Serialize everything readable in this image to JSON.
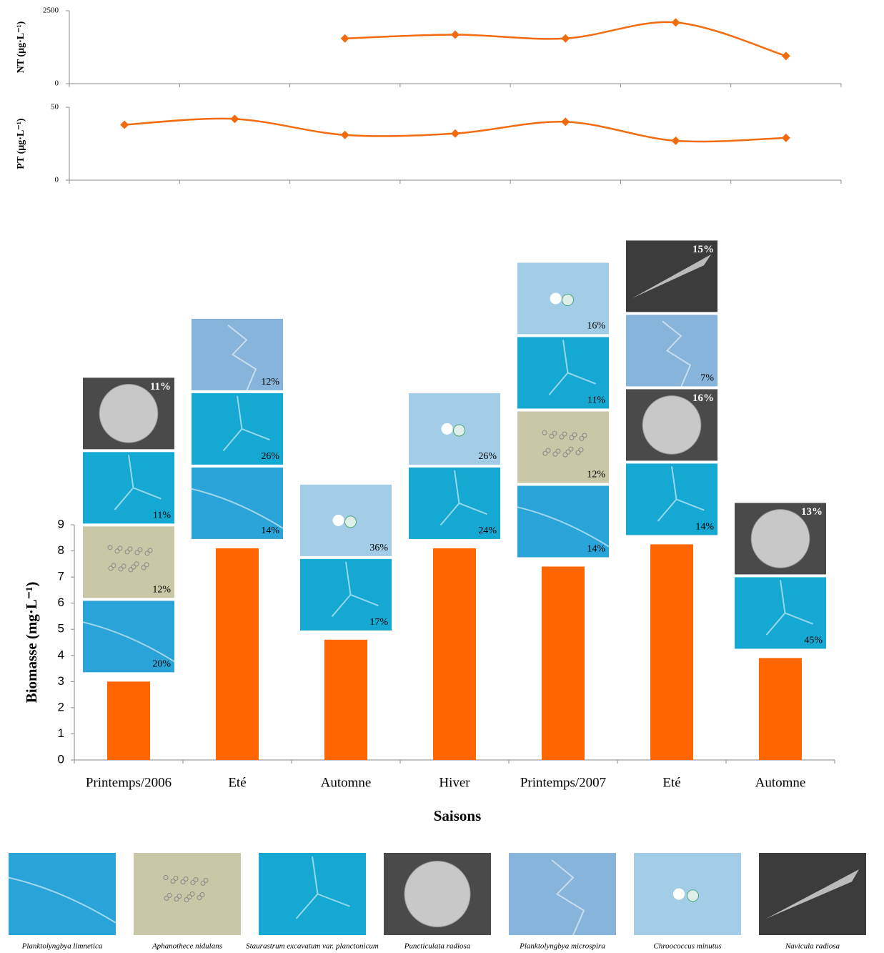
{
  "chart_data": [
    {
      "type": "line",
      "y_label": "NT (µg·L⁻¹)",
      "color": "#f26c0f",
      "x": [
        1,
        2,
        3,
        4,
        5,
        6,
        7
      ],
      "values": [
        null,
        null,
        1550,
        1680,
        1550,
        2100,
        950
      ],
      "ylim": [
        0,
        2500
      ],
      "yticks": [
        0,
        2500
      ]
    },
    {
      "type": "line",
      "y_label": "PT (µg·L⁻¹)",
      "color": "#f26c0f",
      "x": [
        1,
        2,
        3,
        4,
        5,
        6,
        7
      ],
      "values": [
        38,
        42,
        31,
        32,
        40,
        27,
        29
      ],
      "ylim": [
        0,
        50
      ],
      "yticks": [
        0,
        50
      ]
    },
    {
      "type": "bar",
      "y_label": "Biomasse (mg·L⁻¹)",
      "x_label": "Saisons",
      "color": "#ff6600",
      "categories": [
        "Printemps/2006",
        "Eté",
        "Automne",
        "Hiver",
        "Printemps/2007",
        "Eté",
        "Automne"
      ],
      "values": [
        3.0,
        8.1,
        4.6,
        8.1,
        7.4,
        8.25,
        3.9
      ],
      "ylim": [
        0,
        9
      ],
      "yticks": [
        0,
        1,
        2,
        3,
        4,
        5,
        6,
        7,
        8,
        9
      ],
      "series": [
        {
          "name": "Planktolyngbya limnetica",
          "color": "#2aa4d8",
          "values": [
            20,
            14,
            null,
            null,
            14,
            null,
            null
          ],
          "value_labels": [
            "20%",
            "14%",
            null,
            null,
            "14%",
            null,
            null
          ]
        },
        {
          "name": "Aphanothece nidulans",
          "color": "#c9c7a6",
          "values": [
            12,
            null,
            null,
            null,
            12,
            null,
            null
          ],
          "value_labels": [
            "12%",
            null,
            null,
            null,
            "12%",
            null,
            null
          ]
        },
        {
          "name": "Staurastrum excavatum var. planctonicum",
          "color": "#14a8d2",
          "values": [
            11,
            26,
            17,
            24,
            11,
            14,
            45
          ],
          "value_labels": [
            "11%",
            "26%",
            "17%",
            "24%",
            "11%",
            "14%",
            "45%"
          ]
        },
        {
          "name": "Puncticulata radiosa",
          "color": "#4a4a4a",
          "values": [
            11,
            null,
            null,
            null,
            null,
            16,
            13
          ],
          "value_labels": [
            "11%",
            null,
            null,
            null,
            null,
            "16%",
            "13%"
          ]
        },
        {
          "name": "Planktolyngbya microspira",
          "color": "#86b4da",
          "values": [
            null,
            12,
            null,
            null,
            null,
            7,
            null
          ],
          "value_labels": [
            null,
            "12%",
            null,
            null,
            null,
            "7%",
            null
          ]
        },
        {
          "name": "Chroococcus minutus",
          "color": "#a3cde6",
          "values": [
            null,
            null,
            36,
            26,
            16,
            null,
            null
          ],
          "value_labels": [
            null,
            null,
            "36%",
            "26%",
            "16%",
            null,
            null
          ]
        },
        {
          "name": "Navicula radiosa",
          "color": "#3c3c3c",
          "values": [
            null,
            null,
            null,
            null,
            null,
            15,
            null
          ],
          "value_labels": [
            null,
            null,
            null,
            null,
            null,
            "15%",
            null
          ]
        }
      ]
    }
  ]
}
